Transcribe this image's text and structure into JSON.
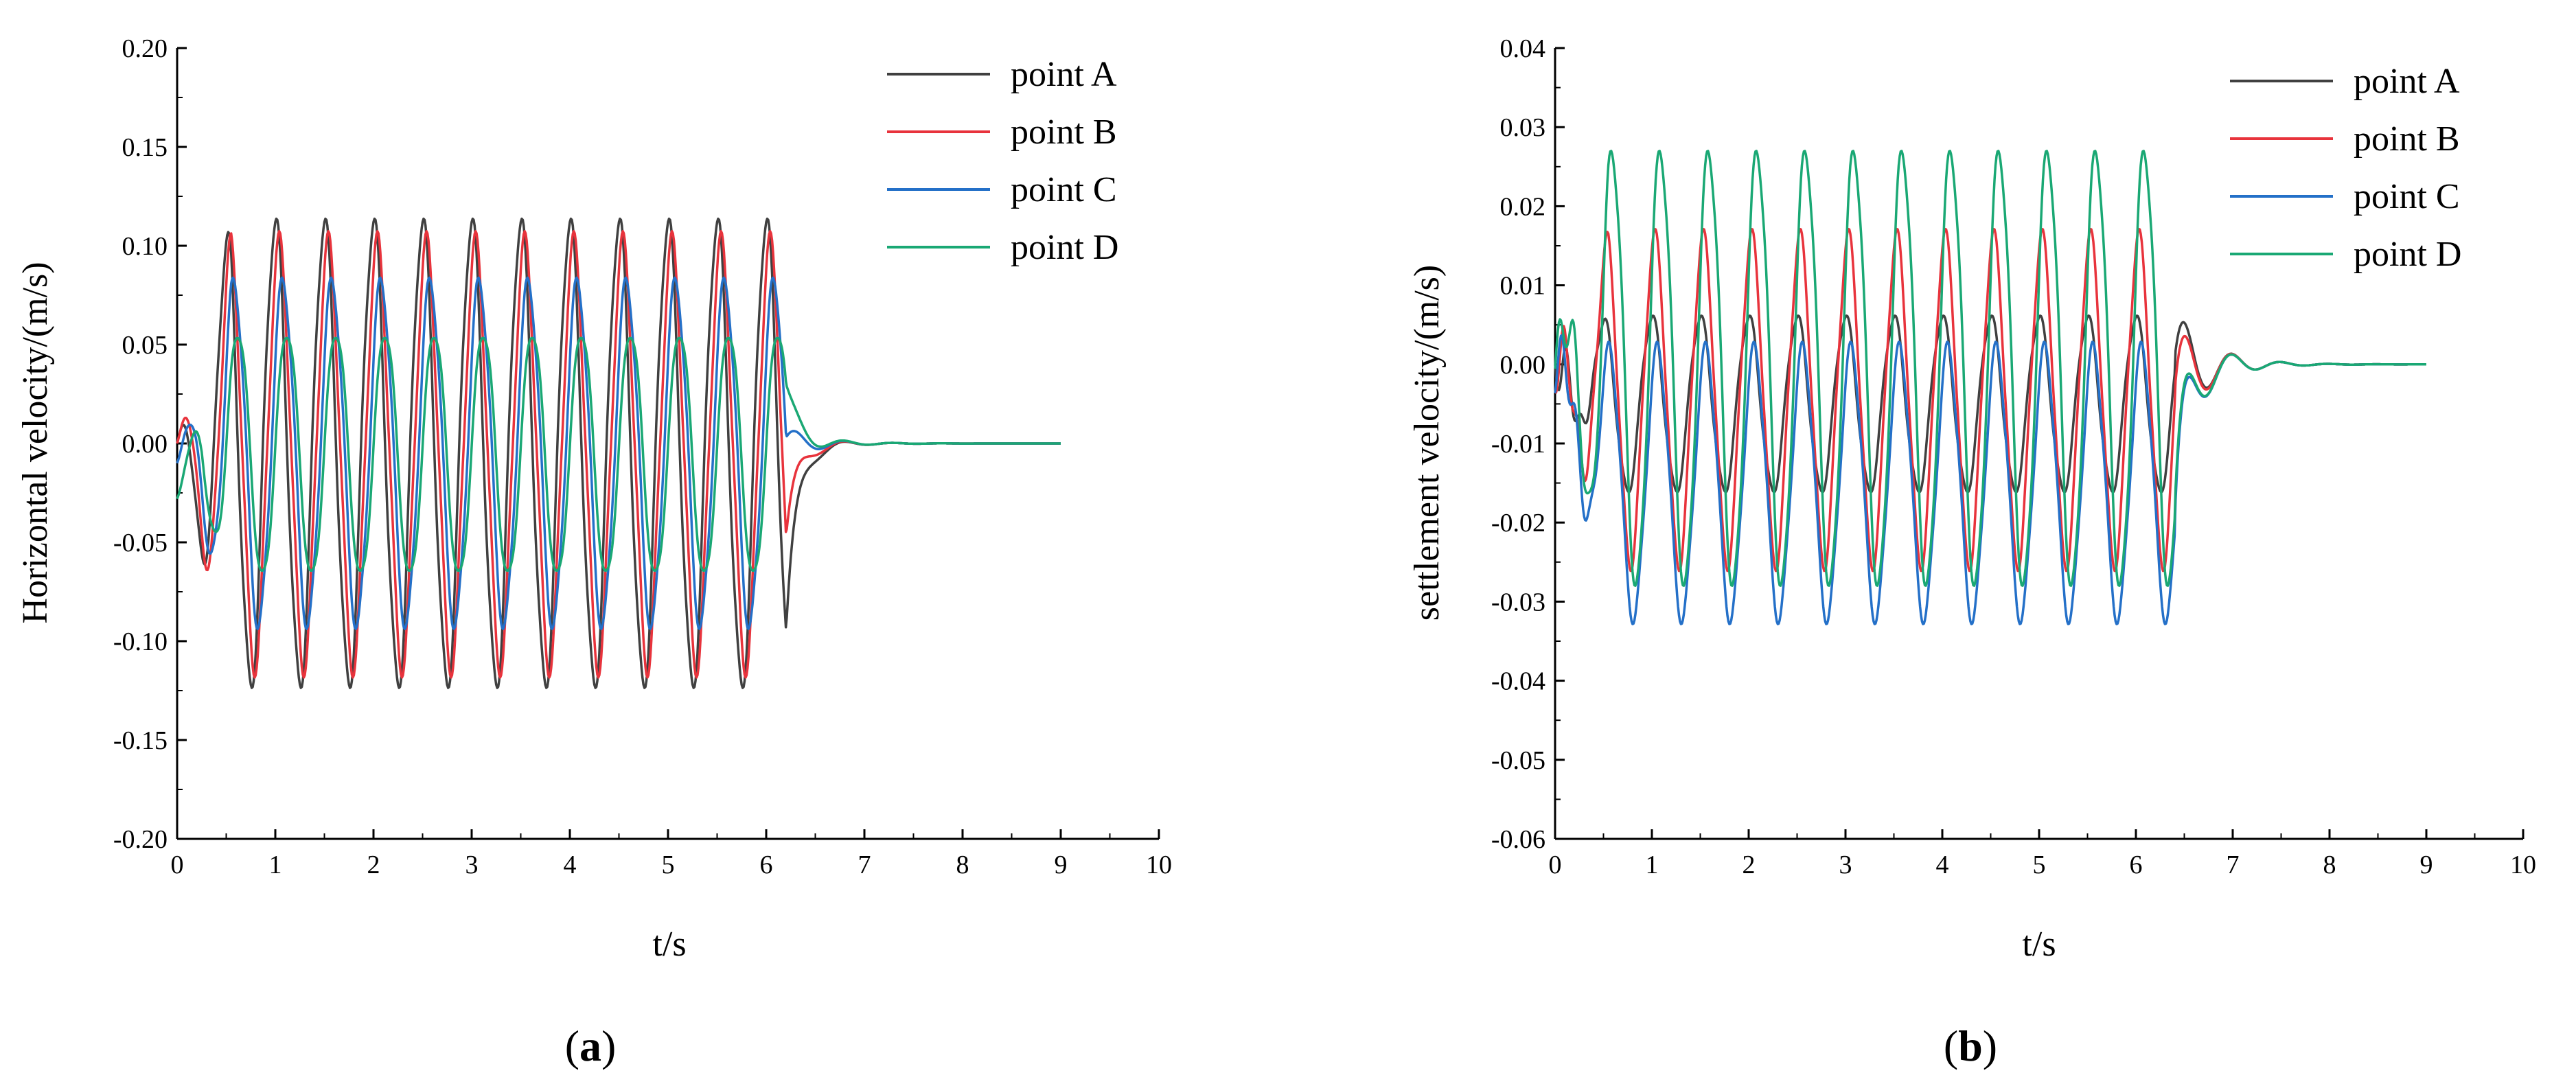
{
  "chart_data": [
    {
      "type": "line",
      "panel_label": "a",
      "caption_open": "(",
      "caption_close": ")",
      "xlabel": "t/s",
      "ylabel": "Horizontal velocity/(m/s)",
      "xlim": [
        0,
        10
      ],
      "ylim": [
        -0.2,
        0.2
      ],
      "x_ticks": [
        "0",
        "1",
        "2",
        "3",
        "4",
        "5",
        "6",
        "7",
        "8",
        "9",
        "10"
      ],
      "y_ticks": [
        "-0.20",
        "-0.15",
        "-0.10",
        "-0.05",
        "0.00",
        "0.05",
        "0.10",
        "0.15",
        "0.20"
      ],
      "legend_position": "top-right",
      "period_s": 0.5,
      "excitation_end_s": 6.2,
      "series": [
        {
          "name": "point A",
          "color": "#404040",
          "peak_max": 0.112,
          "peak_min": -0.122,
          "phase": 0.0,
          "start_value": 0.0,
          "final_time": 9.0
        },
        {
          "name": "point B",
          "color": "#e8333c",
          "peak_max": 0.101,
          "peak_min": -0.112,
          "phase": 0.04,
          "start_value": 0.0,
          "final_time": 9.0
        },
        {
          "name": "point C",
          "color": "#2470c8",
          "peak_max": 0.082,
          "peak_min": -0.092,
          "phase": 0.08,
          "start_value": -0.01,
          "final_time": 9.0
        },
        {
          "name": "point D",
          "color": "#1aa874",
          "peak_max": 0.057,
          "peak_min": -0.068,
          "phase": 0.12,
          "start_value": -0.028,
          "final_time": 9.0
        }
      ]
    },
    {
      "type": "line",
      "panel_label": "b",
      "caption_open": "(",
      "caption_close": ")",
      "xlabel": "t/s",
      "ylabel": "settlement velocity/(m/s)",
      "xlim": [
        0,
        10
      ],
      "ylim": [
        -0.06,
        0.04
      ],
      "x_ticks": [
        "0",
        "1",
        "2",
        "3",
        "4",
        "5",
        "6",
        "7",
        "8",
        "9",
        "10"
      ],
      "y_ticks": [
        "-0.06",
        "-0.05",
        "-0.04",
        "-0.03",
        "-0.02",
        "-0.01",
        "0.00",
        "0.01",
        "0.02",
        "0.03",
        "0.04"
      ],
      "legend_position": "top-right",
      "period_s": 0.5,
      "excitation_end_s": 6.4,
      "series": [
        {
          "name": "point A",
          "color": "#404040",
          "peak_max": 0.006,
          "peak_min": -0.016,
          "phase": 0.0,
          "final_time": 9.0
        },
        {
          "name": "point B",
          "color": "#e8333c",
          "peak_max": 0.016,
          "peak_min": -0.025,
          "phase": 0.03,
          "final_time": 9.0
        },
        {
          "name": "point C",
          "color": "#2470c8",
          "peak_max": 0.002,
          "peak_min": -0.032,
          "phase": 0.06,
          "final_time": 9.0
        },
        {
          "name": "point D",
          "color": "#1aa874",
          "peak_max": 0.027,
          "peak_min": -0.028,
          "phase": 0.09,
          "final_time": 9.0
        }
      ]
    }
  ]
}
